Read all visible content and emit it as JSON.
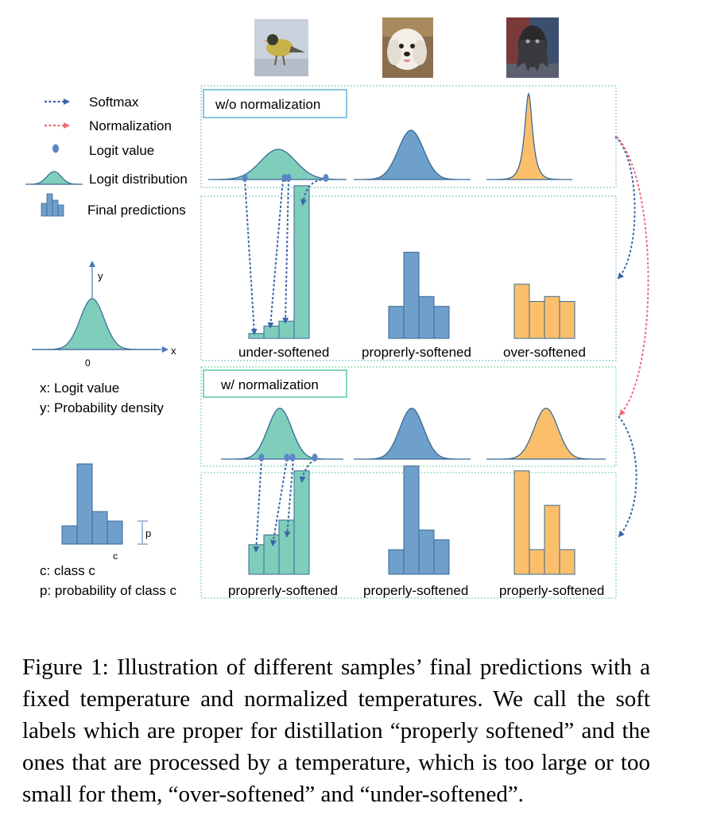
{
  "legend": {
    "softmax": "Softmax",
    "normalization": "Normalization",
    "logit_value": "Logit value",
    "logit_distribution": "Logit distribution",
    "final_predictions": "Final predictions"
  },
  "axes_key": {
    "y_symbol": "y",
    "x_symbol": "x",
    "origin": "0",
    "x_desc": "x: Logit value",
    "y_desc": "y: Probability density"
  },
  "bar_key": {
    "p_symbol": "p",
    "c_symbol": "c",
    "c_desc": "c: class c",
    "p_desc": "p: probability of class c"
  },
  "panels": {
    "top_title": "w/o normalization",
    "bottom_title": "w/ normalization"
  },
  "top_labels": [
    "under-softened",
    "proprerly-softened",
    "over-softened"
  ],
  "bottom_labels": [
    "proprerly-softened",
    "properly-softened",
    "properly-softened"
  ],
  "samples": [
    "bird",
    "dog",
    "shaggy-dog"
  ],
  "caption": "Figure 1: Illustration of different samples’ final predictions with a fixed temperature and normalized temperatures. We call the soft labels which are proper for distillation “properly softened” and the ones that are processed by a temperature, which is too large or too small for them, “over-softened” and “under-softened”.",
  "colors": {
    "teal": "#7fcdbb",
    "blue": "#6f9fcb",
    "orange": "#fbbf6b",
    "softmax_arrow": "#3a66a8",
    "normalization_arrow": "#f06b7a",
    "panel_border": "#6fb7c9",
    "teal_border": "#5fcfa8"
  },
  "predictions": {
    "top": [
      [
        0.02,
        0.05,
        0.07,
        0.62
      ],
      [
        0.13,
        0.35,
        0.17,
        0.13
      ],
      [
        0.22,
        0.15,
        0.17,
        0.15
      ]
    ],
    "bottom": [
      [
        0.12,
        0.16,
        0.22,
        0.42
      ],
      [
        0.1,
        0.44,
        0.18,
        0.14
      ],
      [
        0.42,
        0.1,
        0.28,
        0.1
      ]
    ]
  }
}
